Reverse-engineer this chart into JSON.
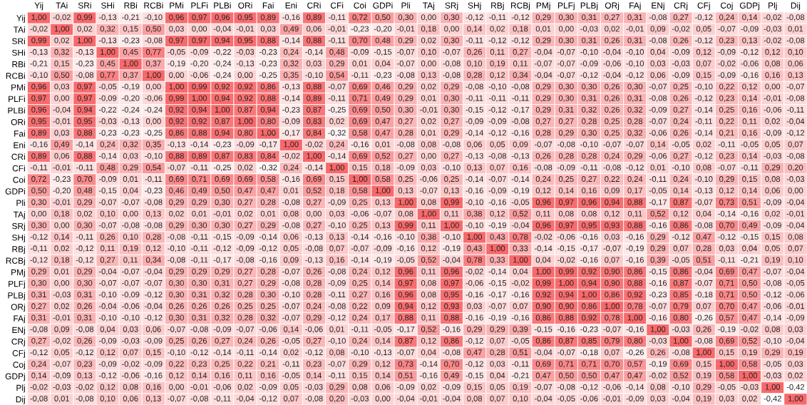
{
  "chart_data": {
    "type": "heatmap",
    "cell_labels": [
      [
        "1,00",
        "-0,02",
        "0,99",
        "-0,13",
        "-0,21",
        "-0,10",
        "0,96",
        "0,97",
        "0,96",
        "0,95",
        "0,89",
        "-0,16",
        "0,89",
        "-0,11",
        "0,72",
        "0,50",
        "0,30",
        "0,00",
        "0,30",
        "-0,12",
        "-0,11",
        "-0,12",
        "0,29",
        "0,30",
        "0,31",
        "0,27",
        "0,31",
        "-0,08",
        "0,27",
        "-0,12",
        "0,24",
        "0,14",
        "-0,02",
        "-0,08"
      ],
      [
        "-0,02",
        "1,00",
        "0,02",
        "0,32",
        "0,15",
        "0,50",
        "0,03",
        "0,00",
        "-0,04",
        "-0,01",
        "0,03",
        "0,49",
        "0,06",
        "-0,01",
        "-0,23",
        "-0,20",
        "-0,01",
        "0,18",
        "0,00",
        "0,14",
        "0,02",
        "0,18",
        "0,01",
        "0,00",
        "-0,03",
        "0,02",
        "-0,01",
        "0,09",
        "-0,02",
        "0,05",
        "-0,07",
        "-0,09",
        "-0,03",
        "0,01"
      ],
      [
        "0,99",
        "0,02",
        "1,00",
        "-0,13",
        "-0,23",
        "-0,08",
        "0,97",
        "0,97",
        "0,94",
        "0,95",
        "0,88",
        "-0,14",
        "0,88",
        "-0,11",
        "0,70",
        "0,48",
        "0,29",
        "0,02",
        "0,30",
        "-0,11",
        "-0,12",
        "-0,12",
        "0,29",
        "0,30",
        "0,31",
        "0,26",
        "0,31",
        "-0,08",
        "0,26",
        "-0,12",
        "0,23",
        "0,13",
        "-0,02",
        "-0,08"
      ],
      [
        "-0,13",
        "0,32",
        "-0,13",
        "1,00",
        "0,45",
        "0,77",
        "-0,05",
        "-0,09",
        "-0,22",
        "-0,03",
        "-0,23",
        "0,24",
        "-0,14",
        "0,48",
        "-0,09",
        "-0,15",
        "-0,07",
        "0,10",
        "-0,07",
        "0,26",
        "0,11",
        "0,27",
        "-0,04",
        "-0,07",
        "-0,10",
        "-0,04",
        "-0,10",
        "0,04",
        "-0,09",
        "0,12",
        "-0,09",
        "-0,12",
        "0,12",
        "0,10"
      ],
      [
        "-0,21",
        "0,15",
        "-0,23",
        "0,45",
        "1,00",
        "0,37",
        "-0,19",
        "-0,20",
        "-0,24",
        "-0,13",
        "-0,23",
        "0,32",
        "0,03",
        "0,29",
        "0,01",
        "0,04",
        "-0,07",
        "0,00",
        "-0,08",
        "0,10",
        "0,19",
        "0,11",
        "-0,07",
        "-0,07",
        "-0,09",
        "-0,06",
        "-0,10",
        "0,03",
        "-0,03",
        "0,07",
        "-0,02",
        "-0,06",
        "0,08",
        "0,06"
      ],
      [
        "-0,10",
        "0,50",
        "-0,08",
        "0,77",
        "0,37",
        "1,00",
        "0,00",
        "-0,06",
        "-0,24",
        "0,00",
        "-0,25",
        "0,35",
        "-0,10",
        "0,54",
        "-0,11",
        "-0,23",
        "-0,08",
        "0,13",
        "-0,08",
        "0,28",
        "0,12",
        "0,34",
        "-0,04",
        "-0,07",
        "-0,12",
        "-0,04",
        "-0,12",
        "0,06",
        "-0,09",
        "0,15",
        "-0,09",
        "-0,16",
        "0,16",
        "0,13"
      ],
      [
        "0,96",
        "0,03",
        "0,97",
        "-0,05",
        "-0,19",
        "0,00",
        "1,00",
        "0,99",
        "0,92",
        "0,92",
        "0,86",
        "-0,13",
        "0,88",
        "-0,07",
        "0,69",
        "0,46",
        "0,29",
        "0,02",
        "0,29",
        "-0,08",
        "-0,10",
        "-0,08",
        "0,29",
        "0,30",
        "0,30",
        "0,26",
        "0,30",
        "-0,07",
        "0,25",
        "-0,10",
        "0,22",
        "0,12",
        "0,00",
        "-0,07"
      ],
      [
        "0,97",
        "0,00",
        "0,97",
        "-0,09",
        "-0,20",
        "-0,06",
        "0,99",
        "1,00",
        "0,94",
        "0,92",
        "0,88",
        "-0,14",
        "0,89",
        "-0,11",
        "0,71",
        "0,49",
        "0,29",
        "0,01",
        "0,30",
        "-0,11",
        "-0,11",
        "-0,11",
        "0,29",
        "0,30",
        "0,31",
        "0,26",
        "0,31",
        "-0,08",
        "0,26",
        "-0,12",
        "0,23",
        "0,14",
        "-0,01",
        "-0,08"
      ],
      [
        "0,96",
        "-0,04",
        "0,94",
        "-0,22",
        "-0,24",
        "-0,24",
        "0,92",
        "0,94",
        "1,00",
        "0,87",
        "0,94",
        "-0,23",
        "0,87",
        "-0,25",
        "0,69",
        "0,50",
        "0,30",
        "-0,01",
        "0,30",
        "-0,15",
        "-0,12",
        "-0,17",
        "0,29",
        "0,31",
        "0,32",
        "0,26",
        "0,32",
        "-0,09",
        "0,27",
        "-0,14",
        "0,25",
        "0,16",
        "-0,06",
        "-0,11"
      ],
      [
        "0,95",
        "-0,01",
        "0,95",
        "-0,03",
        "-0,13",
        "0,00",
        "0,92",
        "0,92",
        "0,87",
        "1,00",
        "0,80",
        "-0,09",
        "0,83",
        "0,02",
        "0,69",
        "0,47",
        "0,27",
        "0,02",
        "0,27",
        "-0,09",
        "-0,09",
        "-0,08",
        "0,27",
        "0,27",
        "0,28",
        "0,25",
        "0,28",
        "-0,07",
        "0,24",
        "-0,11",
        "0,22",
        "0,11",
        "0,02",
        "-0,04"
      ],
      [
        "0,89",
        "0,03",
        "0,88",
        "-0,23",
        "-0,23",
        "-0,25",
        "0,86",
        "0,88",
        "0,94",
        "0,80",
        "1,00",
        "-0,17",
        "0,84",
        "-0,32",
        "0,58",
        "0,47",
        "0,28",
        "0,01",
        "0,29",
        "-0,14",
        "-0,12",
        "-0,16",
        "0,28",
        "0,29",
        "0,30",
        "0,25",
        "0,32",
        "-0,06",
        "0,26",
        "-0,14",
        "0,21",
        "0,16",
        "-0,09",
        "-0,12"
      ],
      [
        "-0,16",
        "0,49",
        "-0,14",
        "0,24",
        "0,32",
        "0,35",
        "-0,13",
        "-0,14",
        "-0,23",
        "-0,09",
        "-0,17",
        "1,00",
        "-0,02",
        "0,24",
        "-0,16",
        "0,01",
        "-0,08",
        "0,08",
        "-0,08",
        "0,06",
        "0,05",
        "0,09",
        "-0,07",
        "-0,08",
        "-0,10",
        "-0,07",
        "-0,07",
        "0,14",
        "-0,05",
        "0,02",
        "-0,11",
        "-0,05",
        "0,05",
        "0,07"
      ],
      [
        "0,89",
        "0,06",
        "0,88",
        "-0,14",
        "0,03",
        "-0,10",
        "0,88",
        "0,89",
        "0,87",
        "0,83",
        "0,84",
        "-0,02",
        "1,00",
        "-0,14",
        "0,69",
        "0,52",
        "0,27",
        "0,00",
        "0,27",
        "-0,13",
        "-0,08",
        "-0,13",
        "0,26",
        "0,28",
        "0,28",
        "0,24",
        "0,29",
        "-0,06",
        "0,27",
        "-0,12",
        "0,23",
        "0,14",
        "-0,03",
        "-0,08"
      ],
      [
        "-0,11",
        "-0,01",
        "-0,11",
        "0,48",
        "0,29",
        "0,54",
        "-0,07",
        "-0,11",
        "-0,25",
        "0,02",
        "-0,32",
        "0,24",
        "-0,14",
        "1,00",
        "0,15",
        "0,18",
        "-0,09",
        "0,03",
        "-0,10",
        "0,13",
        "0,07",
        "0,16",
        "-0,08",
        "-0,09",
        "-0,11",
        "-0,08",
        "-0,12",
        "0,01",
        "-0,10",
        "0,08",
        "-0,07",
        "-0,11",
        "0,29",
        "0,20"
      ],
      [
        "0,72",
        "-0,23",
        "0,70",
        "-0,09",
        "0,01",
        "-0,11",
        "0,69",
        "0,71",
        "0,69",
        "0,69",
        "0,58",
        "-0,16",
        "0,69",
        "0,15",
        "1,00",
        "0,58",
        "0,25",
        "-0,06",
        "0,25",
        "-0,14",
        "-0,07",
        "-0,14",
        "0,24",
        "0,25",
        "0,27",
        "0,22",
        "0,24",
        "-0,11",
        "0,24",
        "-0,10",
        "0,29",
        "0,15",
        "0,08",
        "-0,03"
      ],
      [
        "0,50",
        "-0,20",
        "0,48",
        "-0,15",
        "0,04",
        "-0,23",
        "0,46",
        "0,49",
        "0,50",
        "0,47",
        "0,47",
        "0,01",
        "0,52",
        "0,18",
        "0,58",
        "1,00",
        "0,13",
        "-0,07",
        "0,13",
        "-0,16",
        "-0,09",
        "-0,19",
        "0,12",
        "0,14",
        "0,16",
        "0,09",
        "0,17",
        "-0,05",
        "0,14",
        "-0,13",
        "0,12",
        "0,14",
        "0,06",
        "0,00"
      ],
      [
        "0,30",
        "-0,01",
        "0,29",
        "-0,07",
        "-0,07",
        "-0,08",
        "0,29",
        "0,29",
        "0,30",
        "0,27",
        "0,28",
        "-0,08",
        "0,27",
        "-0,09",
        "0,25",
        "0,13",
        "1,00",
        "0,08",
        "0,99",
        "-0,10",
        "-0,16",
        "-0,05",
        "0,96",
        "0,97",
        "0,96",
        "0,94",
        "0,88",
        "-0,17",
        "0,87",
        "-0,07",
        "0,73",
        "0,51",
        "-0,09",
        "-0,04"
      ],
      [
        "0,00",
        "0,18",
        "0,02",
        "0,10",
        "0,00",
        "0,13",
        "0,02",
        "0,01",
        "-0,01",
        "0,02",
        "0,01",
        "0,08",
        "0,00",
        "0,03",
        "-0,06",
        "-0,07",
        "0,08",
        "1,00",
        "0,11",
        "0,38",
        "0,12",
        "0,52",
        "0,11",
        "0,08",
        "0,08",
        "0,12",
        "0,11",
        "0,52",
        "0,12",
        "0,04",
        "-0,14",
        "-0,16",
        "0,02",
        "-0,01"
      ],
      [
        "0,30",
        "0,00",
        "0,30",
        "-0,07",
        "-0,08",
        "-0,08",
        "0,29",
        "0,30",
        "0,30",
        "0,27",
        "0,29",
        "-0,08",
        "0,27",
        "-0,10",
        "0,25",
        "0,13",
        "0,99",
        "0,11",
        "1,00",
        "-0,10",
        "-0,19",
        "-0,04",
        "0,96",
        "0,97",
        "0,95",
        "0,93",
        "0,88",
        "-0,16",
        "0,86",
        "-0,08",
        "0,70",
        "0,49",
        "-0,09",
        "-0,04"
      ],
      [
        "-0,12",
        "0,14",
        "-0,11",
        "0,26",
        "0,10",
        "0,28",
        "-0,08",
        "-0,11",
        "-0,15",
        "-0,09",
        "-0,14",
        "0,06",
        "-0,13",
        "0,13",
        "-0,14",
        "-0,16",
        "-0,10",
        "0,38",
        "-0,10",
        "1,00",
        "0,43",
        "0,78",
        "-0,02",
        "-0,06",
        "-0,16",
        "0,03",
        "-0,16",
        "0,29",
        "-0,12",
        "0,47",
        "-0,12",
        "-0,15",
        "0,15",
        "0,08"
      ],
      [
        "-0,11",
        "0,02",
        "-0,12",
        "0,11",
        "0,19",
        "0,12",
        "-0,10",
        "-0,11",
        "-0,12",
        "-0,09",
        "-0,12",
        "0,05",
        "-0,08",
        "0,07",
        "-0,07",
        "-0,09",
        "-0,16",
        "0,12",
        "-0,19",
        "0,43",
        "1,00",
        "0,33",
        "-0,14",
        "-0,15",
        "-0,17",
        "-0,07",
        "-0,19",
        "0,29",
        "0,07",
        "0,28",
        "0,03",
        "0,04",
        "0,05",
        "0,07"
      ],
      [
        "-0,12",
        "0,18",
        "-0,12",
        "0,27",
        "0,11",
        "0,34",
        "-0,08",
        "-0,11",
        "-0,17",
        "-0,08",
        "-0,16",
        "0,09",
        "-0,13",
        "0,16",
        "-0,14",
        "-0,19",
        "-0,05",
        "0,52",
        "-0,04",
        "0,78",
        "0,33",
        "1,00",
        "0,04",
        "-0,02",
        "-0,16",
        "0,07",
        "-0,16",
        "0,39",
        "-0,05",
        "0,51",
        "-0,11",
        "-0,21",
        "0,19",
        "0,10"
      ],
      [
        "0,29",
        "0,01",
        "0,29",
        "-0,04",
        "-0,07",
        "-0,04",
        "0,29",
        "0,29",
        "0,29",
        "0,27",
        "0,28",
        "-0,07",
        "0,26",
        "-0,08",
        "0,24",
        "0,12",
        "0,96",
        "0,11",
        "0,96",
        "-0,02",
        "-0,14",
        "0,04",
        "1,00",
        "0,99",
        "0,92",
        "0,90",
        "0,86",
        "-0,15",
        "0,86",
        "-0,04",
        "0,69",
        "0,47",
        "-0,07",
        "-0,04"
      ],
      [
        "0,30",
        "0,00",
        "0,30",
        "-0,07",
        "-0,07",
        "-0,07",
        "0,30",
        "0,30",
        "0,31",
        "0,27",
        "0,29",
        "-0,08",
        "0,28",
        "-0,09",
        "0,25",
        "0,14",
        "0,97",
        "0,08",
        "0,97",
        "-0,06",
        "-0,15",
        "-0,02",
        "0,99",
        "1,00",
        "0,94",
        "0,90",
        "0,88",
        "-0,16",
        "0,87",
        "-0,07",
        "0,71",
        "0,50",
        "-0,08",
        "-0,05"
      ],
      [
        "0,31",
        "-0,03",
        "0,31",
        "-0,10",
        "-0,09",
        "-0,12",
        "0,30",
        "0,31",
        "0,32",
        "0,28",
        "0,30",
        "-0,10",
        "0,28",
        "-0,11",
        "0,27",
        "0,16",
        "0,96",
        "0,08",
        "0,95",
        "-0,16",
        "-0,17",
        "-0,16",
        "0,92",
        "0,94",
        "1,00",
        "0,86",
        "0,92",
        "-0,23",
        "0,85",
        "-0,18",
        "0,71",
        "0,50",
        "-0,12",
        "-0,06"
      ],
      [
        "0,27",
        "0,02",
        "0,26",
        "-0,04",
        "-0,06",
        "-0,04",
        "0,26",
        "0,26",
        "0,26",
        "0,25",
        "0,25",
        "-0,07",
        "0,24",
        "-0,08",
        "0,22",
        "0,09",
        "0,94",
        "0,12",
        "0,93",
        "0,03",
        "-0,07",
        "0,07",
        "0,90",
        "0,90",
        "0,86",
        "1,00",
        "0,78",
        "-0,07",
        "0,79",
        "0,07",
        "0,70",
        "0,47",
        "-0,06",
        "-0,01"
      ],
      [
        "0,31",
        "-0,01",
        "0,31",
        "-0,10",
        "-0,10",
        "-0,12",
        "0,30",
        "0,31",
        "0,32",
        "0,28",
        "0,32",
        "-0,07",
        "0,29",
        "-0,12",
        "0,24",
        "0,17",
        "0,88",
        "0,11",
        "0,88",
        "-0,16",
        "-0,19",
        "-0,16",
        "0,86",
        "0,88",
        "0,92",
        "0,78",
        "1,00",
        "-0,16",
        "0,80",
        "-0,26",
        "0,57",
        "0,47",
        "-0,14",
        "-0,09"
      ],
      [
        "-0,08",
        "0,09",
        "-0,08",
        "0,04",
        "0,03",
        "0,06",
        "-0,07",
        "-0,08",
        "-0,09",
        "-0,07",
        "-0,06",
        "0,14",
        "-0,06",
        "0,01",
        "-0,11",
        "-0,05",
        "-0,17",
        "0,52",
        "-0,16",
        "0,29",
        "0,29",
        "0,39",
        "-0,15",
        "-0,16",
        "-0,23",
        "-0,07",
        "-0,16",
        "1,00",
        "-0,03",
        "0,26",
        "-0,19",
        "-0,02",
        "0,08",
        "0,03"
      ],
      [
        "0,27",
        "-0,02",
        "0,26",
        "-0,09",
        "-0,03",
        "-0,09",
        "0,25",
        "0,26",
        "0,27",
        "0,24",
        "0,26",
        "-0,05",
        "0,27",
        "-0,10",
        "0,24",
        "0,14",
        "0,87",
        "0,12",
        "0,86",
        "-0,12",
        "0,07",
        "-0,05",
        "0,86",
        "0,87",
        "0,85",
        "0,79",
        "0,80",
        "-0,03",
        "1,00",
        "-0,08",
        "0,69",
        "0,52",
        "-0,10",
        "-0,04"
      ],
      [
        "-0,12",
        "0,05",
        "-0,12",
        "0,12",
        "0,07",
        "0,15",
        "-0,10",
        "-0,12",
        "-0,14",
        "-0,11",
        "-0,14",
        "0,02",
        "-0,12",
        "0,08",
        "-0,10",
        "-0,13",
        "-0,07",
        "0,04",
        "-0,08",
        "0,47",
        "0,28",
        "0,51",
        "-0,04",
        "-0,07",
        "-0,18",
        "0,07",
        "-0,26",
        "0,26",
        "-0,08",
        "1,00",
        "0,15",
        "0,19",
        "0,29",
        "0,19"
      ],
      [
        "0,24",
        "-0,07",
        "0,23",
        "-0,09",
        "-0,02",
        "-0,09",
        "0,22",
        "0,23",
        "0,25",
        "0,22",
        "0,21",
        "-0,11",
        "0,23",
        "-0,07",
        "0,29",
        "0,12",
        "0,73",
        "-0,14",
        "0,70",
        "-0,12",
        "0,03",
        "-0,11",
        "0,69",
        "0,71",
        "0,71",
        "0,70",
        "0,57",
        "-0,19",
        "0,69",
        "0,15",
        "1,00",
        "0,58",
        "-0,05",
        "0,03"
      ],
      [
        "0,14",
        "-0,09",
        "0,13",
        "-0,12",
        "-0,06",
        "-0,16",
        "0,12",
        "0,14",
        "0,16",
        "0,11",
        "0,16",
        "-0,05",
        "0,14",
        "-0,11",
        "0,15",
        "0,14",
        "0,51",
        "-0,16",
        "0,49",
        "-0,15",
        "0,04",
        "-0,21",
        "0,47",
        "0,50",
        "0,50",
        "0,47",
        "0,47",
        "-0,02",
        "0,52",
        "0,19",
        "0,58",
        "1,00",
        "-0,03",
        "0,02"
      ],
      [
        "-0,02",
        "-0,03",
        "-0,02",
        "0,12",
        "0,08",
        "0,16",
        "0,00",
        "-0,01",
        "-0,06",
        "0,02",
        "-0,09",
        "0,05",
        "-0,03",
        "0,29",
        "0,08",
        "0,06",
        "-0,09",
        "0,02",
        "-0,09",
        "0,15",
        "0,05",
        "0,19",
        "-0,07",
        "-0,08",
        "-0,12",
        "-0,06",
        "-0,14",
        "0,08",
        "-0,10",
        "0,29",
        "-0,05",
        "-0,03",
        "1,00",
        "-0,42"
      ],
      [
        "-0,08",
        "0,01",
        "-0,08",
        "0,10",
        "0,06",
        "0,13",
        "-0,07",
        "-0,08",
        "-0,11",
        "-0,04",
        "-0,12",
        "0,07",
        "-0,08",
        "0,20",
        "-0,03",
        "0,00",
        "-0,04",
        "-0,01",
        "-0,04",
        "0,08",
        "0,07",
        "0,10",
        "-0,04",
        "-0,05",
        "-0,06",
        "-0,01",
        "-0,09",
        "0,03",
        "-0,04",
        "0,19",
        "0,03",
        "0,02",
        "-0,42",
        "1,00"
      ]
    ],
    "categories": [
      "Yij",
      "TAi",
      "SRi",
      "SHi",
      "RBi",
      "RCBi",
      "PMi",
      "PLFi",
      "PLBi",
      "ORi",
      "Fai",
      "Eni",
      "CRi",
      "CFi",
      "Coi",
      "GDPi",
      "Pli",
      "TAj",
      "SRj",
      "SHj",
      "RBj",
      "RCBj",
      "PMj",
      "PLFj",
      "PLBj",
      "ORj",
      "FAj",
      "ENj",
      "CRj",
      "CFj",
      "Coj",
      "GDPj",
      "Plj",
      "Dij"
    ],
    "y_categories": [
      "Yij",
      "TAi",
      "SRi",
      "SHi",
      "RBi",
      "RCBi",
      "PMi",
      "PLFi",
      "PLBi",
      "ORi",
      "Fai",
      "Eni",
      "CRi",
      "CFi",
      "Coi",
      "GDPi",
      "Pli",
      "TAj",
      "SRj",
      "SHj",
      "RBj",
      "RCBj",
      "PMj",
      "PLFj",
      "PLBj",
      "ORj",
      "FAj",
      "ENj",
      "CRj",
      "CFj",
      "Coj",
      "GDPj",
      "Plj",
      "Dij"
    ],
    "cells": [
      [
        1.0,
        -0.02,
        0.99,
        -0.13,
        -0.21,
        -0.1,
        0.96,
        0.97,
        0.96,
        0.95,
        0.89,
        -0.16,
        0.89,
        -0.11,
        0.72,
        0.5,
        0.3,
        0.0,
        0.3,
        -0.12,
        -0.11,
        -0.12,
        0.29,
        0.3,
        0.31,
        0.27,
        0.31,
        -0.08,
        0.27,
        -0.12,
        0.24,
        0.14,
        -0.02,
        -0.08
      ],
      [
        -0.02,
        1.0,
        0.02,
        0.32,
        0.15,
        0.5,
        0.03,
        0.0,
        -0.04,
        -0.01,
        0.03,
        0.49,
        0.06,
        -0.01,
        -0.23,
        -0.2,
        -0.01,
        0.18,
        0.0,
        0.14,
        0.02,
        0.18,
        0.01,
        0.0,
        -0.03,
        0.02,
        -0.01,
        0.09,
        -0.02,
        0.05,
        -0.07,
        -0.09,
        -0.03,
        0.01
      ],
      [
        0.99,
        0.02,
        1.0,
        -0.13,
        -0.23,
        -0.08,
        0.97,
        0.97,
        0.94,
        0.95,
        0.88,
        -0.14,
        0.88,
        -0.11,
        0.7,
        0.48,
        0.29,
        0.02,
        0.3,
        -0.11,
        -0.12,
        -0.12,
        0.29,
        0.3,
        0.31,
        0.26,
        0.31,
        -0.08,
        0.26,
        -0.12,
        0.23,
        0.13,
        -0.02,
        -0.08
      ],
      [
        -0.13,
        0.32,
        -0.13,
        1.0,
        0.45,
        0.77,
        -0.05,
        -0.09,
        -0.22,
        -0.03,
        -0.23,
        0.24,
        -0.14,
        0.48,
        -0.09,
        -0.15,
        -0.07,
        0.1,
        -0.07,
        0.26,
        0.11,
        0.27,
        -0.04,
        -0.07,
        -0.1,
        -0.04,
        -0.1,
        0.04,
        -0.09,
        0.12,
        -0.09,
        -0.12,
        0.12,
        0.1
      ],
      [
        -0.21,
        0.15,
        -0.23,
        0.45,
        1.0,
        0.37,
        -0.19,
        -0.2,
        -0.24,
        -0.13,
        -0.23,
        0.32,
        0.03,
        0.29,
        0.01,
        0.04,
        -0.07,
        0.0,
        -0.08,
        0.1,
        0.19,
        0.11,
        -0.07,
        -0.07,
        -0.09,
        -0.06,
        -0.1,
        0.03,
        -0.03,
        0.07,
        -0.02,
        -0.06,
        0.08,
        0.06
      ],
      [
        -0.1,
        0.5,
        -0.08,
        0.77,
        0.37,
        1.0,
        0.0,
        -0.06,
        -0.24,
        0.0,
        -0.25,
        0.35,
        -0.1,
        0.54,
        -0.11,
        -0.23,
        -0.08,
        0.13,
        -0.08,
        0.28,
        0.12,
        0.34,
        -0.04,
        -0.07,
        -0.12,
        -0.04,
        -0.12,
        0.06,
        -0.09,
        0.15,
        -0.09,
        -0.16,
        0.16,
        0.13
      ],
      [
        0.96,
        0.03,
        0.97,
        -0.05,
        -0.19,
        0.0,
        1.0,
        0.99,
        0.92,
        0.92,
        0.86,
        -0.13,
        0.88,
        -0.07,
        0.69,
        0.46,
        0.29,
        0.02,
        0.29,
        -0.08,
        -0.1,
        -0.08,
        0.29,
        0.3,
        0.3,
        0.26,
        0.3,
        -0.07,
        0.25,
        -0.1,
        0.22,
        0.12,
        0.0,
        -0.07
      ],
      [
        0.97,
        0.0,
        0.97,
        -0.09,
        -0.2,
        -0.06,
        0.99,
        1.0,
        0.94,
        0.92,
        0.88,
        -0.14,
        0.89,
        -0.11,
        0.71,
        0.49,
        0.29,
        0.01,
        0.3,
        -0.11,
        -0.11,
        -0.11,
        0.29,
        0.3,
        0.31,
        0.26,
        0.31,
        -0.08,
        0.26,
        -0.12,
        0.23,
        0.14,
        -0.01,
        -0.08
      ],
      [
        0.96,
        -0.04,
        0.94,
        -0.22,
        -0.24,
        -0.24,
        0.92,
        0.94,
        1.0,
        0.87,
        0.94,
        -0.23,
        0.87,
        -0.25,
        0.69,
        0.5,
        0.3,
        -0.01,
        0.3,
        -0.15,
        -0.12,
        -0.17,
        0.29,
        0.31,
        0.32,
        0.26,
        0.32,
        -0.09,
        0.27,
        -0.14,
        0.25,
        0.16,
        -0.06,
        -0.11
      ],
      [
        0.95,
        -0.01,
        0.95,
        -0.03,
        -0.13,
        0.0,
        0.92,
        0.92,
        0.87,
        1.0,
        0.8,
        -0.09,
        0.83,
        0.02,
        0.69,
        0.47,
        0.27,
        0.02,
        0.27,
        -0.09,
        -0.09,
        -0.08,
        0.27,
        0.27,
        0.28,
        0.25,
        0.28,
        -0.07,
        0.24,
        -0.11,
        0.22,
        0.11,
        0.02,
        -0.04
      ],
      [
        0.89,
        0.03,
        0.88,
        -0.23,
        -0.23,
        -0.25,
        0.86,
        0.88,
        0.94,
        0.8,
        1.0,
        -0.17,
        0.84,
        -0.32,
        0.58,
        0.47,
        0.28,
        0.01,
        0.29,
        -0.14,
        -0.12,
        -0.16,
        0.28,
        0.29,
        0.3,
        0.25,
        0.32,
        -0.06,
        0.26,
        -0.14,
        0.21,
        0.16,
        -0.09,
        -0.12
      ],
      [
        -0.16,
        0.49,
        -0.14,
        0.24,
        0.32,
        0.35,
        -0.13,
        -0.14,
        -0.23,
        -0.09,
        -0.17,
        1.0,
        -0.02,
        0.24,
        -0.16,
        0.01,
        -0.08,
        0.08,
        -0.08,
        0.06,
        0.05,
        0.09,
        -0.07,
        -0.08,
        -0.1,
        -0.07,
        -0.07,
        0.14,
        -0.05,
        0.02,
        -0.11,
        -0.05,
        0.05,
        0.07
      ],
      [
        0.89,
        0.06,
        0.88,
        -0.14,
        0.03,
        -0.1,
        0.88,
        0.89,
        0.87,
        0.83,
        0.84,
        -0.02,
        1.0,
        -0.14,
        0.69,
        0.52,
        0.27,
        0.0,
        0.27,
        -0.13,
        -0.08,
        -0.13,
        0.26,
        0.28,
        0.28,
        0.24,
        0.29,
        -0.06,
        0.27,
        -0.12,
        0.23,
        0.14,
        -0.03,
        -0.08
      ],
      [
        -0.11,
        -0.01,
        -0.11,
        0.48,
        0.29,
        0.54,
        -0.07,
        -0.11,
        -0.25,
        0.02,
        -0.32,
        0.24,
        -0.14,
        1.0,
        0.15,
        0.18,
        -0.09,
        0.03,
        -0.1,
        0.13,
        0.07,
        0.16,
        -0.08,
        -0.09,
        -0.11,
        -0.08,
        -0.12,
        0.01,
        -0.1,
        0.08,
        -0.07,
        -0.11,
        0.29,
        0.2
      ],
      [
        0.72,
        -0.23,
        0.7,
        -0.09,
        0.01,
        -0.11,
        0.69,
        0.71,
        0.69,
        0.69,
        0.58,
        -0.16,
        0.69,
        0.15,
        1.0,
        0.58,
        0.25,
        -0.06,
        0.25,
        -0.14,
        -0.07,
        -0.14,
        0.24,
        0.25,
        0.27,
        0.22,
        0.24,
        -0.11,
        0.24,
        -0.1,
        0.29,
        0.15,
        0.08,
        -0.03
      ],
      [
        0.5,
        -0.2,
        0.48,
        -0.15,
        0.04,
        -0.23,
        0.46,
        0.49,
        0.5,
        0.47,
        0.47,
        0.01,
        0.52,
        0.18,
        0.58,
        1.0,
        0.13,
        -0.07,
        0.13,
        -0.16,
        -0.09,
        -0.19,
        0.12,
        0.14,
        0.16,
        0.09,
        0.17,
        -0.05,
        0.14,
        -0.13,
        0.12,
        0.14,
        0.06,
        0.0
      ],
      [
        0.3,
        -0.01,
        0.29,
        -0.07,
        -0.07,
        -0.08,
        0.29,
        0.29,
        0.3,
        0.27,
        0.28,
        -0.08,
        0.27,
        -0.09,
        0.25,
        0.13,
        1.0,
        0.08,
        0.99,
        -0.1,
        -0.16,
        -0.05,
        0.96,
        0.97,
        0.96,
        0.94,
        0.88,
        -0.17,
        0.87,
        -0.07,
        0.73,
        0.51,
        -0.09,
        -0.04
      ],
      [
        0.0,
        0.18,
        0.02,
        0.1,
        0.0,
        0.13,
        0.02,
        0.01,
        -0.01,
        0.02,
        0.01,
        0.08,
        0.0,
        0.03,
        -0.06,
        -0.07,
        0.08,
        1.0,
        0.11,
        0.38,
        0.12,
        0.52,
        0.11,
        0.08,
        0.08,
        0.12,
        0.11,
        0.52,
        0.12,
        0.04,
        -0.14,
        -0.16,
        0.02,
        -0.01
      ],
      [
        0.3,
        0.0,
        0.3,
        -0.07,
        -0.08,
        -0.08,
        0.29,
        0.3,
        0.3,
        0.27,
        0.29,
        -0.08,
        0.27,
        -0.1,
        0.25,
        0.13,
        0.99,
        0.11,
        1.0,
        -0.1,
        -0.19,
        -0.04,
        0.96,
        0.97,
        0.95,
        0.93,
        0.88,
        -0.16,
        0.86,
        -0.08,
        0.7,
        0.49,
        -0.09,
        -0.04
      ],
      [
        -0.12,
        0.14,
        -0.11,
        0.26,
        0.1,
        0.28,
        -0.08,
        -0.11,
        -0.15,
        -0.09,
        -0.14,
        0.06,
        -0.13,
        0.13,
        -0.14,
        -0.16,
        -0.1,
        0.38,
        -0.1,
        1.0,
        0.43,
        0.78,
        -0.02,
        -0.06,
        -0.16,
        0.03,
        -0.16,
        0.29,
        -0.12,
        0.47,
        -0.12,
        -0.15,
        0.15,
        0.08
      ],
      [
        -0.11,
        0.02,
        -0.12,
        0.11,
        0.19,
        0.12,
        -0.1,
        -0.11,
        -0.12,
        -0.09,
        -0.12,
        0.05,
        -0.08,
        0.07,
        -0.07,
        -0.09,
        -0.16,
        0.12,
        -0.19,
        0.43,
        1.0,
        0.33,
        -0.14,
        -0.15,
        -0.17,
        -0.07,
        -0.19,
        0.29,
        0.07,
        0.28,
        0.03,
        0.04,
        0.05,
        0.07
      ],
      [
        -0.12,
        0.18,
        -0.12,
        0.27,
        0.11,
        0.34,
        -0.08,
        -0.11,
        -0.17,
        -0.08,
        -0.16,
        0.09,
        -0.13,
        0.16,
        -0.14,
        -0.19,
        -0.05,
        0.52,
        -0.04,
        0.78,
        0.33,
        1.0,
        0.04,
        -0.02,
        -0.16,
        0.07,
        -0.16,
        0.39,
        -0.05,
        0.51,
        -0.11,
        -0.21,
        0.19,
        0.1
      ],
      [
        0.29,
        0.01,
        0.29,
        -0.04,
        -0.07,
        -0.04,
        0.29,
        0.29,
        0.29,
        0.27,
        0.28,
        -0.07,
        0.26,
        -0.08,
        0.24,
        0.12,
        0.96,
        0.11,
        0.96,
        -0.02,
        -0.14,
        0.04,
        1.0,
        0.99,
        0.92,
        0.9,
        0.86,
        -0.15,
        0.86,
        -0.04,
        0.69,
        0.47,
        -0.07,
        -0.04
      ],
      [
        0.3,
        0.0,
        0.3,
        -0.07,
        -0.07,
        -0.07,
        0.3,
        0.3,
        0.31,
        0.27,
        0.29,
        -0.08,
        0.28,
        -0.09,
        0.25,
        0.14,
        0.97,
        0.08,
        0.97,
        -0.06,
        -0.15,
        -0.02,
        0.99,
        1.0,
        0.94,
        0.9,
        0.88,
        -0.16,
        0.87,
        -0.07,
        0.71,
        0.5,
        -0.08,
        -0.05
      ],
      [
        0.31,
        -0.03,
        0.31,
        -0.1,
        -0.09,
        -0.12,
        0.3,
        0.31,
        0.32,
        0.28,
        0.3,
        -0.1,
        0.28,
        -0.11,
        0.27,
        0.16,
        0.96,
        0.08,
        0.95,
        -0.16,
        -0.17,
        -0.16,
        0.92,
        0.94,
        1.0,
        0.86,
        0.92,
        -0.23,
        0.85,
        -0.18,
        0.71,
        0.5,
        -0.12,
        -0.06
      ],
      [
        0.27,
        0.02,
        0.26,
        -0.04,
        -0.06,
        -0.04,
        0.26,
        0.26,
        0.26,
        0.25,
        0.25,
        -0.07,
        0.24,
        -0.08,
        0.22,
        0.09,
        0.94,
        0.12,
        0.93,
        0.03,
        -0.07,
        0.07,
        0.9,
        0.9,
        0.86,
        1.0,
        0.78,
        -0.07,
        0.79,
        0.07,
        0.7,
        0.47,
        -0.06,
        -0.01
      ],
      [
        0.31,
        -0.01,
        0.31,
        -0.1,
        -0.1,
        -0.12,
        0.3,
        0.31,
        0.32,
        0.28,
        0.32,
        -0.07,
        0.29,
        -0.12,
        0.24,
        0.17,
        0.88,
        0.11,
        0.88,
        -0.16,
        -0.19,
        -0.16,
        0.86,
        0.88,
        0.92,
        0.78,
        1.0,
        -0.16,
        0.8,
        -0.26,
        0.57,
        0.47,
        -0.14,
        -0.09
      ],
      [
        -0.08,
        0.09,
        -0.08,
        0.04,
        0.03,
        0.06,
        -0.07,
        -0.08,
        -0.09,
        -0.07,
        -0.06,
        0.14,
        -0.06,
        0.01,
        -0.11,
        -0.05,
        -0.17,
        0.52,
        -0.16,
        0.29,
        0.29,
        0.39,
        -0.15,
        -0.16,
        -0.23,
        -0.07,
        -0.16,
        1.0,
        -0.03,
        0.26,
        -0.19,
        -0.02,
        0.08,
        0.03
      ],
      [
        0.27,
        -0.02,
        0.26,
        -0.09,
        -0.03,
        -0.09,
        0.25,
        0.26,
        0.27,
        0.24,
        0.26,
        -0.05,
        0.27,
        -0.1,
        0.24,
        0.14,
        0.87,
        0.12,
        0.86,
        -0.12,
        0.07,
        -0.05,
        0.86,
        0.87,
        0.85,
        0.79,
        0.8,
        -0.03,
        1.0,
        -0.08,
        0.69,
        0.52,
        -0.1,
        -0.04
      ],
      [
        -0.12,
        0.05,
        -0.12,
        0.12,
        0.07,
        0.15,
        -0.1,
        -0.12,
        -0.14,
        -0.11,
        -0.14,
        0.02,
        -0.12,
        0.08,
        -0.1,
        -0.13,
        -0.07,
        0.04,
        -0.08,
        0.47,
        0.28,
        0.51,
        -0.04,
        -0.07,
        -0.18,
        0.07,
        -0.26,
        0.26,
        -0.08,
        1.0,
        0.15,
        0.19,
        0.29,
        0.19
      ],
      [
        0.24,
        -0.07,
        0.23,
        -0.09,
        -0.02,
        -0.09,
        0.22,
        0.23,
        0.25,
        0.22,
        0.21,
        -0.11,
        0.23,
        -0.07,
        0.29,
        0.12,
        0.73,
        -0.14,
        0.7,
        -0.12,
        0.03,
        -0.11,
        0.69,
        0.71,
        0.71,
        0.7,
        0.57,
        -0.19,
        0.69,
        0.15,
        1.0,
        0.58,
        -0.05,
        0.03
      ],
      [
        0.14,
        -0.09,
        0.13,
        -0.12,
        -0.06,
        -0.16,
        0.12,
        0.14,
        0.16,
        0.11,
        0.16,
        -0.05,
        0.14,
        -0.11,
        0.15,
        0.14,
        0.51,
        -0.16,
        0.49,
        -0.15,
        0.04,
        -0.21,
        0.47,
        0.5,
        0.5,
        0.47,
        0.47,
        -0.02,
        0.52,
        0.19,
        0.58,
        1.0,
        -0.03,
        0.02
      ],
      [
        -0.02,
        -0.03,
        -0.02,
        0.12,
        0.08,
        0.16,
        0.0,
        -0.01,
        -0.06,
        0.02,
        -0.09,
        0.05,
        -0.03,
        0.29,
        0.08,
        0.06,
        -0.09,
        0.02,
        -0.09,
        0.15,
        0.05,
        0.19,
        -0.07,
        -0.08,
        -0.12,
        -0.06,
        -0.14,
        0.08,
        -0.1,
        0.29,
        -0.05,
        -0.03,
        1.0,
        -0.42
      ],
      [
        -0.08,
        0.01,
        -0.08,
        0.1,
        0.06,
        0.13,
        -0.07,
        -0.08,
        -0.11,
        -0.04,
        -0.12,
        0.07,
        -0.08,
        0.2,
        -0.03,
        0.0,
        -0.04,
        -0.01,
        -0.04,
        0.08,
        0.07,
        0.1,
        -0.04,
        -0.05,
        -0.06,
        -0.01,
        -0.09,
        0.03,
        -0.04,
        0.19,
        0.03,
        0.02,
        -0.42,
        1.0
      ]
    ]
  }
}
